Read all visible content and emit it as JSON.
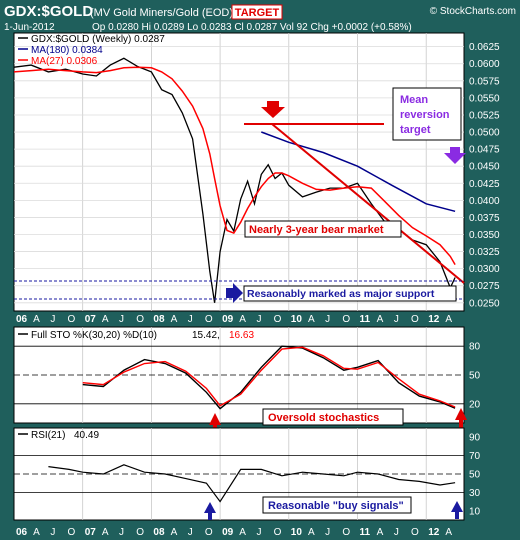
{
  "header": {
    "symbol": "GDX:$GOLD",
    "description": "(MV Gold Miners/Gold (EOD)",
    "target_label": "TARGET",
    "watermark": "© StockCharts.com",
    "date": "1-Jun-2012",
    "stats": "Op 0.0280 Hi 0.0289 Lo 0.0283 Cl 0.0287 Vol 92 Chg +0.0002 (+0.58%)"
  },
  "colors": {
    "background": "#1f5f5c",
    "price": "#000000",
    "ma180": "#00008b",
    "ma27": "#ff0000",
    "annotation_red": "#e00000",
    "annotation_blue": "#1a1aa0",
    "annotation_purple": "#8a2be2"
  },
  "x_axis": {
    "labels": [
      "06",
      "A",
      "J",
      "O",
      "07",
      "A",
      "J",
      "O",
      "08",
      "A",
      "J",
      "O",
      "09",
      "A",
      "J",
      "O",
      "10",
      "A",
      "J",
      "O",
      "11",
      "A",
      "J",
      "O",
      "12",
      "A"
    ]
  },
  "chart_data": [
    {
      "type": "line",
      "panel": "price",
      "title": "GDX:$GOLD (Weekly) 0.0287",
      "legend": [
        {
          "name": "GDX:$GOLD (Weekly) 0.0287",
          "color": "#000000"
        },
        {
          "name": "MA(180) 0.0384",
          "color": "#00008b"
        },
        {
          "name": "MA(27) 0.0306",
          "color": "#ff0000"
        }
      ],
      "y_ticks": [
        "0.0625",
        "0.0600",
        "0.0575",
        "0.0550",
        "0.0525",
        "0.0500",
        "0.0475",
        "0.0450",
        "0.0425",
        "0.0400",
        "0.0375",
        "0.0350",
        "0.0325",
        "0.0300",
        "0.0275",
        "0.0250"
      ],
      "ylim": [
        0.0238,
        0.0645
      ],
      "x": [
        2006.0,
        2006.25,
        2006.5,
        2006.75,
        2007.0,
        2007.2,
        2007.4,
        2007.6,
        2007.8,
        2008.0,
        2008.15,
        2008.3,
        2008.45,
        2008.6,
        2008.75,
        2008.85,
        2008.92,
        2009.0,
        2009.1,
        2009.2,
        2009.3,
        2009.4,
        2009.5,
        2009.6,
        2009.7,
        2009.8,
        2009.9,
        2010.0,
        2010.2,
        2010.4,
        2010.6,
        2010.8,
        2011.0,
        2011.2,
        2011.4,
        2011.6,
        2011.8,
        2012.0,
        2012.2,
        2012.35,
        2012.42
      ],
      "series": [
        {
          "name": "GDX:$GOLD (Weekly) 0.0287",
          "values": [
            0.0595,
            0.0598,
            0.0588,
            0.0592,
            0.0585,
            0.0582,
            0.0598,
            0.0608,
            0.0596,
            0.0588,
            0.0562,
            0.0555,
            0.0528,
            0.049,
            0.038,
            0.0296,
            0.025,
            0.0325,
            0.0372,
            0.0355,
            0.0402,
            0.0428,
            0.0395,
            0.0438,
            0.0452,
            0.0432,
            0.044,
            0.0422,
            0.0405,
            0.0412,
            0.0418,
            0.0418,
            0.0425,
            0.0395,
            0.0368,
            0.0358,
            0.0342,
            0.0335,
            0.031,
            0.0272,
            0.0287
          ]
        },
        {
          "name": "MA(27) 0.0306",
          "values": [
            0.0588,
            0.059,
            0.0592,
            0.059,
            0.0588,
            0.0587,
            0.059,
            0.0594,
            0.0595,
            0.0594,
            0.0588,
            0.0578,
            0.056,
            0.0538,
            0.0505,
            0.0468,
            0.0432,
            0.0392,
            0.0356,
            0.0352,
            0.0368,
            0.0388,
            0.0405,
            0.042,
            0.0432,
            0.044,
            0.044,
            0.0436,
            0.0425,
            0.0416,
            0.0415,
            0.0418,
            0.042,
            0.0418,
            0.0398,
            0.0378,
            0.036,
            0.0348,
            0.0335,
            0.0318,
            0.0306
          ]
        },
        {
          "name": "MA(180) 0.0384",
          "x": [
            2009.6,
            2010.0,
            2010.5,
            2011.0,
            2011.5,
            2012.0,
            2012.42
          ],
          "values": [
            0.05,
            0.0485,
            0.047,
            0.045,
            0.0422,
            0.0395,
            0.0384
          ]
        }
      ],
      "annotations": {
        "text_red": "Nearly 3-year bear market",
        "text_blue": "Resaonably marked as major support",
        "text_purple": "Mean reversion target"
      }
    },
    {
      "type": "line",
      "panel": "stochastics",
      "title": "Full STO %K(30,20) %D(10) 15.42, 16.63",
      "label_k": "Full STO %K(30,20) %D(10)",
      "value_k": "15.42,",
      "value_d": "16.63",
      "y_ticks": [
        "80",
        "50",
        "20"
      ],
      "ylim": [
        0,
        100
      ],
      "x": [
        2007.0,
        2007.3,
        2007.6,
        2007.9,
        2008.2,
        2008.5,
        2008.8,
        2009.0,
        2009.3,
        2009.6,
        2009.9,
        2010.2,
        2010.5,
        2010.8,
        2011.0,
        2011.3,
        2011.6,
        2011.9,
        2012.2,
        2012.42
      ],
      "series": [
        {
          "name": "%K",
          "values": [
            40,
            38,
            55,
            66,
            62,
            52,
            32,
            15,
            32,
            58,
            80,
            78,
            68,
            55,
            58,
            65,
            42,
            28,
            22,
            15.42
          ]
        },
        {
          "name": "%D",
          "values": [
            42,
            40,
            53,
            62,
            64,
            54,
            36,
            18,
            30,
            55,
            77,
            79,
            70,
            57,
            56,
            63,
            46,
            30,
            23,
            16.63
          ]
        }
      ],
      "annotation": "Oversold stochastics"
    },
    {
      "type": "line",
      "panel": "rsi",
      "title": "RSI(21) 40.49",
      "label": "RSI(21)",
      "value": "40.49",
      "y_ticks": [
        "90",
        "70",
        "50",
        "30",
        "10"
      ],
      "ylim": [
        0,
        100
      ],
      "x": [
        2006.5,
        2006.8,
        2007.0,
        2007.3,
        2007.6,
        2007.9,
        2008.2,
        2008.5,
        2008.8,
        2009.0,
        2009.3,
        2009.6,
        2009.9,
        2010.2,
        2010.5,
        2010.8,
        2011.0,
        2011.3,
        2011.6,
        2011.9,
        2012.2,
        2012.42
      ],
      "series": [
        {
          "name": "RSI(21)",
          "values": [
            58,
            55,
            52,
            50,
            60,
            52,
            50,
            45,
            40,
            20,
            55,
            55,
            48,
            52,
            50,
            48,
            52,
            50,
            44,
            42,
            38,
            40.49
          ]
        }
      ],
      "annotation": "Reasonable \"buy signals\""
    }
  ]
}
